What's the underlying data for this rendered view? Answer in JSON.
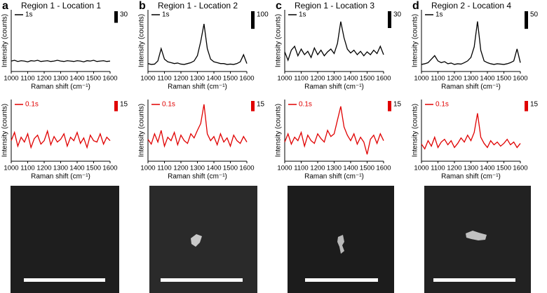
{
  "chart_data": [
    {
      "type": "line",
      "panel_label": "a",
      "title": "Region 1 - Location 1",
      "x_label": "Raman shift (cm⁻¹)",
      "y_label": "Intensity (counts)",
      "x": [
        1000,
        1020,
        1040,
        1060,
        1080,
        1100,
        1120,
        1140,
        1160,
        1180,
        1200,
        1220,
        1240,
        1260,
        1280,
        1300,
        1320,
        1340,
        1360,
        1380,
        1400,
        1420,
        1440,
        1460,
        1480,
        1500,
        1520,
        1540,
        1560,
        1580,
        1600
      ],
      "xlim": [
        1000,
        1600
      ],
      "xticks": [
        1000,
        1100,
        1200,
        1300,
        1400,
        1500,
        1600
      ],
      "ylim": [
        0,
        160
      ],
      "scale_bar": 30,
      "series": [
        {
          "name": "1s",
          "color": "#000000",
          "values": [
            27,
            29,
            26,
            28,
            27,
            25,
            28,
            27,
            29,
            26,
            27,
            28,
            26,
            27,
            29,
            27,
            26,
            28,
            27,
            26,
            28,
            27,
            25,
            28,
            27,
            29,
            26,
            27,
            28,
            26,
            27
          ]
        }
      ]
    },
    {
      "type": "line",
      "x_label": "Raman shift (cm⁻¹)",
      "y_label": "Intensity (counts)",
      "x": [
        1000,
        1020,
        1040,
        1060,
        1080,
        1100,
        1120,
        1140,
        1160,
        1180,
        1200,
        1220,
        1240,
        1260,
        1280,
        1300,
        1320,
        1340,
        1360,
        1380,
        1400,
        1420,
        1440,
        1460,
        1480,
        1500,
        1520,
        1540,
        1560,
        1580,
        1600
      ],
      "xlim": [
        1000,
        1600
      ],
      "xticks": [
        1000,
        1100,
        1200,
        1300,
        1400,
        1500,
        1600
      ],
      "ylim": [
        0,
        90
      ],
      "scale_bar": 15,
      "series": [
        {
          "name": "0.1s",
          "color": "#e00000",
          "values": [
            30,
            42,
            22,
            35,
            28,
            40,
            20,
            33,
            38,
            25,
            30,
            44,
            24,
            36,
            28,
            32,
            40,
            22,
            35,
            30,
            42,
            26,
            34,
            20,
            38,
            30,
            28,
            40,
            25,
            35,
            30
          ]
        }
      ]
    },
    {
      "type": "line",
      "panel_label": "b",
      "title": "Region 1 - Location 2",
      "x_label": "Raman shift (cm⁻¹)",
      "y_label": "Intensity (counts)",
      "x": [
        1000,
        1020,
        1040,
        1060,
        1080,
        1100,
        1120,
        1140,
        1160,
        1180,
        1200,
        1220,
        1240,
        1260,
        1280,
        1300,
        1320,
        1340,
        1360,
        1380,
        1400,
        1420,
        1440,
        1460,
        1480,
        1500,
        1520,
        1540,
        1560,
        1580,
        1600
      ],
      "xlim": [
        1000,
        1600
      ],
      "xticks": [
        1000,
        1100,
        1200,
        1300,
        1400,
        1500,
        1600
      ],
      "ylim": [
        0,
        350
      ],
      "scale_bar": 100,
      "series": [
        {
          "name": "1s",
          "color": "#000000",
          "values": [
            45,
            40,
            42,
            60,
            130,
            70,
            55,
            50,
            45,
            48,
            42,
            40,
            45,
            50,
            60,
            90,
            170,
            270,
            130,
            70,
            55,
            50,
            45,
            45,
            40,
            42,
            40,
            45,
            55,
            95,
            45
          ]
        }
      ]
    },
    {
      "type": "line",
      "x_label": "Raman shift (cm⁻¹)",
      "y_label": "Intensity (counts)",
      "x": [
        1000,
        1020,
        1040,
        1060,
        1080,
        1100,
        1120,
        1140,
        1160,
        1180,
        1200,
        1220,
        1240,
        1260,
        1280,
        1300,
        1320,
        1340,
        1360,
        1380,
        1400,
        1420,
        1440,
        1460,
        1480,
        1500,
        1520,
        1540,
        1560,
        1580,
        1600
      ],
      "xlim": [
        1000,
        1600
      ],
      "xticks": [
        1000,
        1100,
        1200,
        1300,
        1400,
        1500,
        1600
      ],
      "ylim": [
        0,
        90
      ],
      "scale_bar": 15,
      "series": [
        {
          "name": "0.1s",
          "color": "#e00000",
          "values": [
            32,
            25,
            40,
            28,
            45,
            22,
            35,
            30,
            42,
            24,
            38,
            30,
            26,
            40,
            34,
            45,
            55,
            83,
            40,
            30,
            36,
            24,
            40,
            28,
            34,
            22,
            38,
            30,
            26,
            36,
            28
          ]
        }
      ]
    },
    {
      "type": "line",
      "panel_label": "c",
      "title": "Region 1 - Location 3",
      "x_label": "Raman shift (cm⁻¹)",
      "y_label": "Intensity (counts)",
      "x": [
        1000,
        1020,
        1040,
        1060,
        1080,
        1100,
        1120,
        1140,
        1160,
        1180,
        1200,
        1220,
        1240,
        1260,
        1280,
        1300,
        1320,
        1340,
        1360,
        1380,
        1400,
        1420,
        1440,
        1460,
        1480,
        1500,
        1520,
        1540,
        1560,
        1580,
        1600
      ],
      "xlim": [
        1000,
        1600
      ],
      "xticks": [
        1000,
        1100,
        1200,
        1300,
        1400,
        1500,
        1600
      ],
      "ylim": [
        0,
        110
      ],
      "scale_bar": 30,
      "series": [
        {
          "name": "1s",
          "color": "#000000",
          "values": [
            35,
            20,
            38,
            45,
            28,
            40,
            30,
            36,
            25,
            42,
            30,
            38,
            28,
            35,
            40,
            32,
            50,
            89,
            60,
            40,
            33,
            38,
            30,
            36,
            28,
            35,
            30,
            38,
            32,
            45,
            30
          ]
        }
      ]
    },
    {
      "type": "line",
      "x_label": "Raman shift (cm⁻¹)",
      "y_label": "Intensity (counts)",
      "x": [
        1000,
        1020,
        1040,
        1060,
        1080,
        1100,
        1120,
        1140,
        1160,
        1180,
        1200,
        1220,
        1240,
        1260,
        1280,
        1300,
        1320,
        1340,
        1360,
        1380,
        1400,
        1420,
        1440,
        1460,
        1480,
        1500,
        1520,
        1540,
        1560,
        1580,
        1600
      ],
      "xlim": [
        1000,
        1600
      ],
      "xticks": [
        1000,
        1100,
        1200,
        1300,
        1400,
        1500,
        1600
      ],
      "ylim": [
        0,
        90
      ],
      "scale_bar": 15,
      "series": [
        {
          "name": "0.1s",
          "color": "#e00000",
          "values": [
            28,
            40,
            25,
            35,
            30,
            42,
            22,
            38,
            30,
            26,
            40,
            33,
            28,
            45,
            36,
            40,
            60,
            80,
            50,
            38,
            30,
            40,
            25,
            35,
            28,
            10,
            32,
            38,
            26,
            40,
            30
          ]
        }
      ]
    },
    {
      "type": "line",
      "panel_label": "d",
      "title": "Region 2 - Location 4",
      "x_label": "Raman shift (cm⁻¹)",
      "y_label": "Intensity (counts)",
      "x": [
        1000,
        1020,
        1040,
        1060,
        1080,
        1100,
        1120,
        1140,
        1160,
        1180,
        1200,
        1220,
        1240,
        1260,
        1280,
        1300,
        1320,
        1340,
        1360,
        1380,
        1400,
        1420,
        1440,
        1460,
        1480,
        1500,
        1520,
        1540,
        1560,
        1580,
        1600
      ],
      "xlim": [
        1000,
        1600
      ],
      "xticks": [
        1000,
        1100,
        1200,
        1300,
        1400,
        1500,
        1600
      ],
      "ylim": [
        0,
        175
      ],
      "scale_bar": 50,
      "series": [
        {
          "name": "1s",
          "color": "#000000",
          "values": [
            20,
            22,
            25,
            35,
            45,
            30,
            25,
            28,
            22,
            24,
            20,
            22,
            21,
            25,
            30,
            40,
            70,
            142,
            60,
            30,
            25,
            22,
            20,
            22,
            21,
            20,
            22,
            25,
            30,
            64,
            25
          ]
        }
      ]
    },
    {
      "type": "line",
      "x_label": "Raman shift (cm⁻¹)",
      "y_label": "Intensity (counts)",
      "x": [
        1000,
        1020,
        1040,
        1060,
        1080,
        1100,
        1120,
        1140,
        1160,
        1180,
        1200,
        1220,
        1240,
        1260,
        1280,
        1300,
        1320,
        1340,
        1360,
        1380,
        1400,
        1420,
        1440,
        1460,
        1480,
        1500,
        1520,
        1540,
        1560,
        1580,
        1600
      ],
      "xlim": [
        1000,
        1600
      ],
      "xticks": [
        1000,
        1100,
        1200,
        1300,
        1400,
        1500,
        1600
      ],
      "ylim": [
        0,
        90
      ],
      "scale_bar": 15,
      "series": [
        {
          "name": "0.1s",
          "color": "#e00000",
          "values": [
            25,
            18,
            30,
            22,
            35,
            20,
            28,
            32,
            24,
            30,
            20,
            26,
            34,
            28,
            38,
            30,
            42,
            70,
            35,
            26,
            20,
            30,
            24,
            28,
            22,
            26,
            32,
            24,
            28,
            20,
            26
          ]
        }
      ]
    }
  ]
}
